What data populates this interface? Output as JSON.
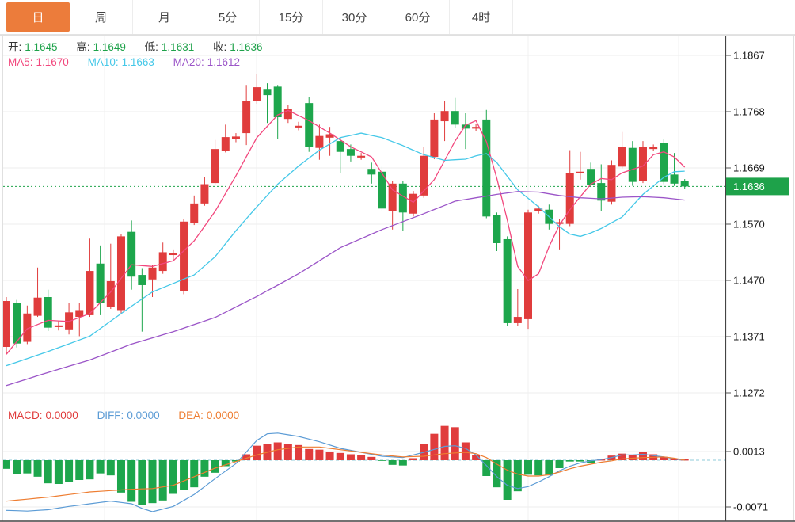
{
  "tabs": {
    "items": [
      {
        "label": "日",
        "selected": true
      },
      {
        "label": "周",
        "selected": false
      },
      {
        "label": "月",
        "selected": false
      },
      {
        "label": "5分",
        "selected": false
      },
      {
        "label": "15分",
        "selected": false
      },
      {
        "label": "30分",
        "selected": false
      },
      {
        "label": "60分",
        "selected": false
      },
      {
        "label": "4时",
        "selected": false
      }
    ]
  },
  "legend": {
    "open_label": "开:",
    "open": "1.1645",
    "high_label": "高:",
    "high": "1.1649",
    "low_label": "低:",
    "low": "1.1631",
    "close_label": "收:",
    "close": "1.1636",
    "ma5_label": "MA5:",
    "ma5": "1.1670",
    "ma10_label": "MA10:",
    "ma10": "1.1663",
    "ma20_label": "MA20:",
    "ma20": "1.1612"
  },
  "macd_legend": {
    "macd_label": "MACD:",
    "macd": "0.0000",
    "diff_label": "DIFF:",
    "diff": "0.0000",
    "dea_label": "DEA:",
    "dea": "0.0000"
  },
  "axis": {
    "price_ticks": [
      "1.1867",
      "1.1768",
      "1.1669",
      "1.1570",
      "1.1470",
      "1.1371",
      "1.1272"
    ],
    "price_tag": "1.1636",
    "macd_ticks": [
      "0.0013",
      "-0.0071"
    ]
  },
  "colors": {
    "up": "#e03c3c",
    "down": "#1da64c",
    "ma5": "#f2477d",
    "ma10": "#45c8e8",
    "ma20": "#9b55c8",
    "diff_line": "#5b9bd5",
    "dea_line": "#ee7d31",
    "tab_accent": "#ec7c3b",
    "price_tag_bg": "#1ea24a",
    "grid": "#ececec",
    "axis_text": "#1a1a1a",
    "dotted_price": "#1ea24a",
    "dotted_zero": "#8fcbd9",
    "frame_dark": "#444444",
    "separator": "#8a8a8a",
    "frame_light": "#e0e0e0"
  },
  "chart_data": {
    "type": "candlestick_with_macd",
    "title": "Daily candlestick chart with MA5/MA10/MA20 overlays and MACD panel",
    "current_price": 1.1636,
    "price_axis": {
      "gridline_values": [
        1.1867,
        1.1768,
        1.1669,
        1.157,
        1.147,
        1.1371,
        1.1272
      ]
    },
    "macd_axis": {
      "gridline_values": [
        0.0013,
        -0.0071
      ],
      "zero": 0.0
    },
    "last_bar": {
      "open": 1.1645,
      "high": 1.1649,
      "low": 1.1631,
      "close": 1.1636,
      "macd": 0.0,
      "diff": 0.0,
      "dea": 0.0
    },
    "candles_ohlc": [
      [
        1.1353,
        1.1441,
        1.134,
        1.1434
      ],
      [
        1.1431,
        1.1436,
        1.1352,
        1.1359
      ],
      [
        1.1362,
        1.1426,
        1.1358,
        1.1412
      ],
      [
        1.1408,
        1.1493,
        1.1406,
        1.144
      ],
      [
        1.1441,
        1.1454,
        1.1381,
        1.1387
      ],
      [
        1.1388,
        1.1399,
        1.1382,
        1.1391
      ],
      [
        1.1384,
        1.1431,
        1.1375,
        1.1414
      ],
      [
        1.1406,
        1.143,
        1.1372,
        1.1418
      ],
      [
        1.1409,
        1.1544,
        1.1406,
        1.1487
      ],
      [
        1.15,
        1.1532,
        1.1409,
        1.143
      ],
      [
        1.1423,
        1.1535,
        1.142,
        1.1469
      ],
      [
        1.1418,
        1.1552,
        1.1412,
        1.1548
      ],
      [
        1.1556,
        1.1576,
        1.1454,
        1.1477
      ],
      [
        1.148,
        1.1492,
        1.138,
        1.1462
      ],
      [
        1.1472,
        1.1497,
        1.1441,
        1.1493
      ],
      [
        1.1487,
        1.1537,
        1.1482,
        1.152
      ],
      [
        1.1515,
        1.1525,
        1.1505,
        1.1518
      ],
      [
        1.1451,
        1.1578,
        1.1446,
        1.1574
      ],
      [
        1.1571,
        1.162,
        1.1568,
        1.1606
      ],
      [
        1.1606,
        1.1652,
        1.1602,
        1.164
      ],
      [
        1.1642,
        1.1718,
        1.1638,
        1.1702
      ],
      [
        1.1699,
        1.1745,
        1.1696,
        1.1723
      ],
      [
        1.172,
        1.173,
        1.1714,
        1.1724
      ],
      [
        1.173,
        1.1815,
        1.1709,
        1.1787
      ],
      [
        1.1786,
        1.1834,
        1.1782,
        1.1811
      ],
      [
        1.1808,
        1.1818,
        1.1748,
        1.1797
      ],
      [
        1.1812,
        1.1815,
        1.172,
        1.1758
      ],
      [
        1.1755,
        1.178,
        1.1748,
        1.1772
      ],
      [
        1.174,
        1.175,
        1.1735,
        1.1743
      ],
      [
        1.1783,
        1.1794,
        1.1697,
        1.1706
      ],
      [
        1.1704,
        1.1745,
        1.1683,
        1.1725
      ],
      [
        1.1722,
        1.1741,
        1.169,
        1.1728
      ],
      [
        1.1716,
        1.1722,
        1.166,
        1.1697
      ],
      [
        1.1702,
        1.171,
        1.168,
        1.169
      ],
      [
        1.1687,
        1.1695,
        1.1683,
        1.169
      ],
      [
        1.1667,
        1.1678,
        1.1641,
        1.1657
      ],
      [
        1.1662,
        1.1672,
        1.1592,
        1.1597
      ],
      [
        1.1592,
        1.1646,
        1.156,
        1.1641
      ],
      [
        1.1641,
        1.1645,
        1.1557,
        1.159
      ],
      [
        1.1588,
        1.1628,
        1.1583,
        1.1623
      ],
      [
        1.162,
        1.1706,
        1.1616,
        1.169
      ],
      [
        1.1688,
        1.1765,
        1.1684,
        1.1754
      ],
      [
        1.1751,
        1.1786,
        1.1716,
        1.1769
      ],
      [
        1.1769,
        1.1792,
        1.1739,
        1.1745
      ],
      [
        1.1745,
        1.1765,
        1.1702,
        1.1738
      ],
      [
        1.1738,
        1.1746,
        1.1734,
        1.1741
      ],
      [
        1.1754,
        1.1771,
        1.158,
        1.1583
      ],
      [
        1.1585,
        1.159,
        1.1522,
        1.1536
      ],
      [
        1.1543,
        1.1548,
        1.139,
        1.1395
      ],
      [
        1.1395,
        1.1455,
        1.139,
        1.1406
      ],
      [
        1.1402,
        1.1595,
        1.1385,
        1.159
      ],
      [
        1.1593,
        1.1602,
        1.1588,
        1.1597
      ],
      [
        1.1595,
        1.1604,
        1.156,
        1.157
      ],
      [
        1.157,
        1.1578,
        1.1525,
        1.1573
      ],
      [
        1.157,
        1.17,
        1.1566,
        1.166
      ],
      [
        1.1659,
        1.1697,
        1.1648,
        1.1662
      ],
      [
        1.1667,
        1.1678,
        1.1635,
        1.1639
      ],
      [
        1.1642,
        1.1675,
        1.1592,
        1.1611
      ],
      [
        1.1609,
        1.1682,
        1.1604,
        1.1674
      ],
      [
        1.1671,
        1.1732,
        1.1668,
        1.1706
      ],
      [
        1.1704,
        1.1716,
        1.1637,
        1.1644
      ],
      [
        1.1646,
        1.1716,
        1.1642,
        1.1706
      ],
      [
        1.1702,
        1.171,
        1.1698,
        1.1706
      ],
      [
        1.1713,
        1.172,
        1.164,
        1.1644
      ],
      [
        1.1657,
        1.1695,
        1.1637,
        1.1641
      ],
      [
        1.1645,
        1.1649,
        1.1631,
        1.1636
      ]
    ],
    "macd_hist": [
      -0.0013,
      -0.0021,
      -0.002,
      -0.0025,
      -0.0035,
      -0.0036,
      -0.0033,
      -0.003,
      -0.0029,
      -0.002,
      -0.0023,
      -0.0049,
      -0.0063,
      -0.0068,
      -0.0065,
      -0.0061,
      -0.0051,
      -0.0045,
      -0.0041,
      -0.0025,
      -0.0019,
      -0.0009,
      -0.0002,
      0.0009,
      0.0022,
      0.0025,
      0.0027,
      0.0025,
      0.0023,
      0.0017,
      0.0016,
      0.0013,
      0.0011,
      0.0009,
      0.0008,
      0.0005,
      -0.0001,
      -0.0007,
      -0.0008,
      0.0003,
      0.0024,
      0.004,
      0.0052,
      0.005,
      0.0027,
      0.0008,
      -0.0024,
      -0.0041,
      -0.006,
      -0.0047,
      -0.0022,
      -0.0023,
      -0.0023,
      -0.0012,
      -0.0002,
      -0.0002,
      -0.0004,
      0.0,
      0.0007,
      0.001,
      0.0008,
      0.0013,
      0.0009,
      0.0005,
      0.0002,
      0.0
    ],
    "diff_points": [
      [
        0,
        -0.0076
      ],
      [
        2,
        -0.0077
      ],
      [
        4,
        -0.0075
      ],
      [
        6,
        -0.007
      ],
      [
        8,
        -0.0066
      ],
      [
        10,
        -0.0062
      ],
      [
        12,
        -0.0066
      ],
      [
        13,
        -0.0073
      ],
      [
        14,
        -0.0078
      ],
      [
        16,
        -0.007
      ],
      [
        18,
        -0.0052
      ],
      [
        20,
        -0.0028
      ],
      [
        22,
        -0.0005
      ],
      [
        24,
        0.003
      ],
      [
        25,
        0.004
      ],
      [
        26,
        0.0041
      ],
      [
        28,
        0.0036
      ],
      [
        30,
        0.0028
      ],
      [
        32,
        0.0018
      ],
      [
        34,
        0.0012
      ],
      [
        36,
        0.0006
      ],
      [
        38,
        0.0004
      ],
      [
        40,
        0.0012
      ],
      [
        42,
        0.0021
      ],
      [
        43,
        0.0022
      ],
      [
        44,
        0.0018
      ],
      [
        45,
        0.0008
      ],
      [
        46,
        -0.0008
      ],
      [
        47,
        -0.0025
      ],
      [
        48,
        -0.0038
      ],
      [
        49,
        -0.0043
      ],
      [
        50,
        -0.004
      ],
      [
        51,
        -0.0033
      ],
      [
        52,
        -0.0025
      ],
      [
        53,
        -0.0016
      ],
      [
        54,
        -0.0009
      ],
      [
        55,
        -0.0004
      ],
      [
        56,
        -0.0001
      ],
      [
        57,
        0.0001
      ],
      [
        58,
        0.0004
      ],
      [
        59,
        0.0008
      ],
      [
        60,
        0.0008
      ],
      [
        61,
        0.0009
      ],
      [
        62,
        0.0007
      ],
      [
        63,
        0.0005
      ],
      [
        64,
        0.0002
      ],
      [
        65,
        0.0
      ]
    ],
    "dea_points": [
      [
        0,
        -0.0062
      ],
      [
        4,
        -0.0056
      ],
      [
        8,
        -0.0048
      ],
      [
        12,
        -0.0044
      ],
      [
        14,
        -0.0043
      ],
      [
        16,
        -0.0038
      ],
      [
        18,
        -0.0025
      ],
      [
        20,
        -0.0012
      ],
      [
        22,
        -0.0002
      ],
      [
        24,
        0.0008
      ],
      [
        26,
        0.0016
      ],
      [
        28,
        0.002
      ],
      [
        30,
        0.002
      ],
      [
        32,
        0.0016
      ],
      [
        34,
        0.0012
      ],
      [
        36,
        0.0008
      ],
      [
        38,
        0.0005
      ],
      [
        40,
        0.0006
      ],
      [
        42,
        0.001
      ],
      [
        44,
        0.0012
      ],
      [
        45,
        0.001
      ],
      [
        46,
        0.0004
      ],
      [
        47,
        -0.0006
      ],
      [
        48,
        -0.0015
      ],
      [
        49,
        -0.0021
      ],
      [
        50,
        -0.0024
      ],
      [
        51,
        -0.0024
      ],
      [
        52,
        -0.0022
      ],
      [
        53,
        -0.0018
      ],
      [
        54,
        -0.0013
      ],
      [
        55,
        -0.0009
      ],
      [
        56,
        -0.0006
      ],
      [
        57,
        -0.0003
      ],
      [
        58,
        -0.0001
      ],
      [
        59,
        0.0002
      ],
      [
        61,
        0.0004
      ],
      [
        63,
        0.0005
      ],
      [
        64,
        0.0003
      ],
      [
        65,
        0.0
      ]
    ],
    "ma5_points": [
      [
        0,
        1.134
      ],
      [
        2,
        1.1385
      ],
      [
        4,
        1.14
      ],
      [
        6,
        1.1398
      ],
      [
        8,
        1.1412
      ],
      [
        10,
        1.145
      ],
      [
        12,
        1.1498
      ],
      [
        14,
        1.1495
      ],
      [
        16,
        1.1505
      ],
      [
        18,
        1.154
      ],
      [
        20,
        1.1592
      ],
      [
        22,
        1.1655
      ],
      [
        24,
        1.1722
      ],
      [
        26,
        1.1762
      ],
      [
        27,
        1.177
      ],
      [
        29,
        1.1752
      ],
      [
        31,
        1.173
      ],
      [
        33,
        1.1706
      ],
      [
        35,
        1.1688
      ],
      [
        37,
        1.163
      ],
      [
        39,
        1.1608
      ],
      [
        41,
        1.1648
      ],
      [
        43,
        1.1716
      ],
      [
        44,
        1.1744
      ],
      [
        45,
        1.1752
      ],
      [
        46,
        1.1715
      ],
      [
        47,
        1.165
      ],
      [
        48,
        1.1577
      ],
      [
        49,
        1.1495
      ],
      [
        50,
        1.147
      ],
      [
        51,
        1.1482
      ],
      [
        52,
        1.153
      ],
      [
        53,
        1.1568
      ],
      [
        54,
        1.1595
      ],
      [
        55,
        1.1618
      ],
      [
        56,
        1.164
      ],
      [
        57,
        1.165
      ],
      [
        58,
        1.1648
      ],
      [
        59,
        1.166
      ],
      [
        61,
        1.1672
      ],
      [
        62,
        1.1692
      ],
      [
        63,
        1.1697
      ],
      [
        64,
        1.1688
      ],
      [
        65,
        1.167
      ]
    ],
    "ma10_points": [
      [
        0,
        1.132
      ],
      [
        4,
        1.1345
      ],
      [
        8,
        1.1372
      ],
      [
        12,
        1.1425
      ],
      [
        14,
        1.145
      ],
      [
        16,
        1.1465
      ],
      [
        18,
        1.148
      ],
      [
        20,
        1.1512
      ],
      [
        22,
        1.1558
      ],
      [
        24,
        1.16
      ],
      [
        26,
        1.164
      ],
      [
        28,
        1.1672
      ],
      [
        30,
        1.17
      ],
      [
        32,
        1.1722
      ],
      [
        34,
        1.173
      ],
      [
        36,
        1.1722
      ],
      [
        38,
        1.1708
      ],
      [
        40,
        1.1692
      ],
      [
        42,
        1.1682
      ],
      [
        44,
        1.1684
      ],
      [
        45,
        1.169
      ],
      [
        46,
        1.1694
      ],
      [
        47,
        1.1678
      ],
      [
        49,
        1.163
      ],
      [
        51,
        1.16
      ],
      [
        53,
        1.1565
      ],
      [
        54,
        1.1552
      ],
      [
        55,
        1.1548
      ],
      [
        56,
        1.1554
      ],
      [
        57,
        1.1562
      ],
      [
        59,
        1.1582
      ],
      [
        61,
        1.1622
      ],
      [
        63,
        1.1652
      ],
      [
        64,
        1.1662
      ],
      [
        65,
        1.1663
      ]
    ],
    "ma20_points": [
      [
        0,
        1.1285
      ],
      [
        4,
        1.1308
      ],
      [
        8,
        1.133
      ],
      [
        12,
        1.1358
      ],
      [
        16,
        1.138
      ],
      [
        20,
        1.1405
      ],
      [
        24,
        1.1442
      ],
      [
        28,
        1.1482
      ],
      [
        32,
        1.1528
      ],
      [
        36,
        1.156
      ],
      [
        40,
        1.1588
      ],
      [
        43,
        1.161
      ],
      [
        45,
        1.1616
      ],
      [
        47,
        1.1622
      ],
      [
        49,
        1.1627
      ],
      [
        51,
        1.1626
      ],
      [
        53,
        1.162
      ],
      [
        55,
        1.1616
      ],
      [
        57,
        1.1614
      ],
      [
        59,
        1.1617
      ],
      [
        61,
        1.1618
      ],
      [
        63,
        1.1616
      ],
      [
        65,
        1.1612
      ]
    ]
  }
}
